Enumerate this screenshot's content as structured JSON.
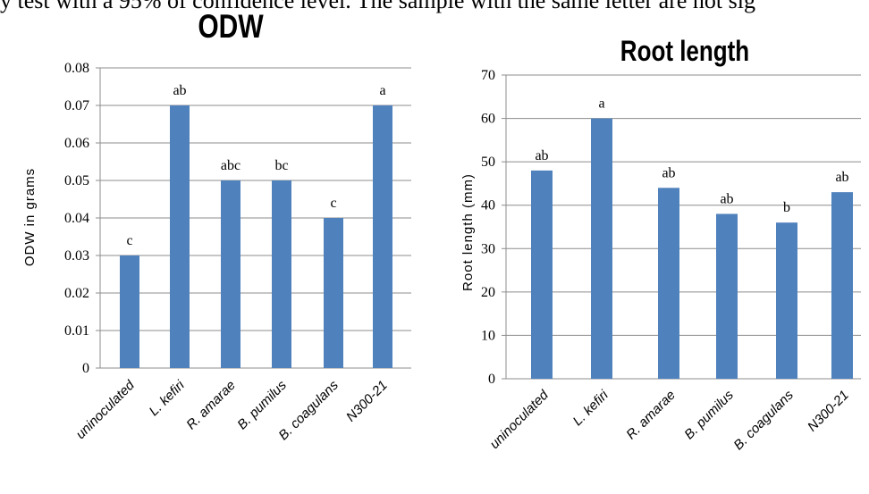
{
  "top_text": "y test with a 95% of confidence level. The sample with the same letter are not sig",
  "chart_data": [
    {
      "type": "bar",
      "title": "ODW",
      "ylabel": "ODW in grams",
      "xlabel": "",
      "categories": [
        "uninoculated",
        "L. kefiri",
        "R. amarae",
        "B. pumilus",
        "B. coagulans",
        "N300-21"
      ],
      "values": [
        0.03,
        0.07,
        0.05,
        0.05,
        0.04,
        0.07
      ],
      "annotations": [
        "c",
        "ab",
        "abc",
        "bc",
        "c",
        "a"
      ],
      "ylim": [
        0,
        0.08
      ],
      "yticks": [
        "0",
        "0.01",
        "0.02",
        "0.03",
        "0.04",
        "0.05",
        "0.06",
        "0.07",
        "0.08"
      ],
      "grid": true,
      "color": "#4f81bd"
    },
    {
      "type": "bar",
      "title": "Root length",
      "ylabel": "Root length (mm)",
      "xlabel": "",
      "categories": [
        "uninoculated",
        "L. kefiri",
        "R. amarae",
        "B. pumilus",
        "B. coagulans",
        "N300-21"
      ],
      "values": [
        48,
        60,
        44,
        38,
        36,
        43
      ],
      "annotations": [
        "ab",
        "a",
        "ab",
        "ab",
        "b",
        "ab"
      ],
      "ylim": [
        0,
        70
      ],
      "yticks": [
        "0",
        "10",
        "20",
        "30",
        "40",
        "50",
        "60",
        "70"
      ],
      "grid": true,
      "color": "#4f81bd"
    }
  ]
}
